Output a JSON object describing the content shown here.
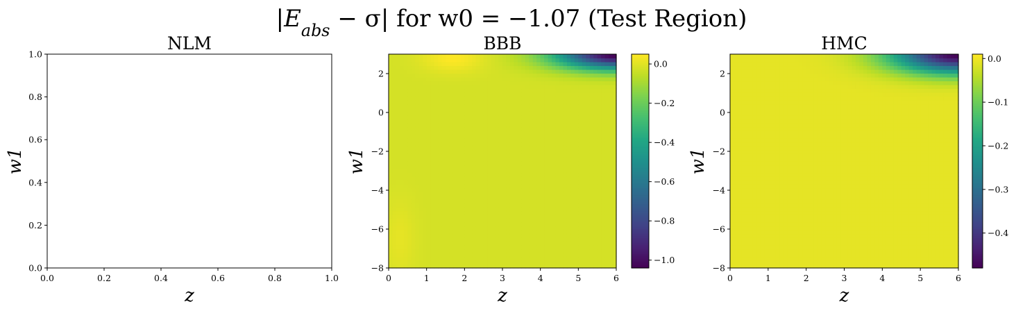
{
  "figure": {
    "title": "|E_abs − σ| for w0 = −1.07 (Test Region)"
  },
  "chart_data": [
    {
      "type": "heatmap",
      "panel": "left",
      "title": "NLM",
      "xlabel": "z",
      "ylabel": "w1",
      "xlim": [
        0.0,
        1.0
      ],
      "ylim": [
        0.0,
        1.0
      ],
      "xticks": [
        "0.0",
        "0.2",
        "0.4",
        "0.6",
        "0.8",
        "1.0"
      ],
      "yticks": [
        "0.0",
        "0.2",
        "0.4",
        "0.6",
        "0.8",
        "1.0"
      ],
      "empty": true
    },
    {
      "type": "heatmap",
      "panel": "middle",
      "title": "BBB",
      "xlabel": "z",
      "ylabel": "w1",
      "xlim": [
        0,
        6
      ],
      "ylim": [
        -8,
        3
      ],
      "xticks": [
        "0",
        "1",
        "2",
        "3",
        "4",
        "5",
        "6"
      ],
      "yticks": [
        "−8",
        "−6",
        "−4",
        "−2",
        "0",
        "2"
      ],
      "colormap": "viridis",
      "vmin": -1.04,
      "vmax": 0.05,
      "colorbar_ticks": [
        "0.0",
        "−0.2",
        "−0.4",
        "−0.6",
        "−0.8",
        "−1.0"
      ],
      "field": {
        "base": -0.02,
        "bumps": [
          {
            "z": 1.7,
            "w1": 2.8,
            "amp": 0.07,
            "sz": 0.8,
            "sw": 0.7
          },
          {
            "z": 0.3,
            "w1": -6.5,
            "amp": 0.03,
            "sz": 0.4,
            "sw": 2.0
          },
          {
            "z": 6.0,
            "w1": 3.0,
            "amp": -1.02,
            "sz": 1.55,
            "sw": 0.75
          }
        ]
      }
    },
    {
      "type": "heatmap",
      "panel": "right",
      "title": "HMC",
      "xlabel": "z",
      "ylabel": "w1",
      "xlim": [
        0,
        6
      ],
      "ylim": [
        -8,
        3
      ],
      "xticks": [
        "0",
        "1",
        "2",
        "3",
        "4",
        "5",
        "6"
      ],
      "yticks": [
        "−8",
        "−6",
        "−4",
        "−2",
        "0",
        "2"
      ],
      "colormap": "viridis",
      "vmin": -0.48,
      "vmax": 0.01,
      "colorbar_ticks": [
        "0.0",
        "−0.1",
        "−0.2",
        "−0.3",
        "−0.4"
      ],
      "field": {
        "base": -0.008,
        "bumps": [
          {
            "z": 6.0,
            "w1": 3.0,
            "amp": -0.47,
            "sz": 1.7,
            "sw": 0.95
          }
        ]
      }
    }
  ]
}
